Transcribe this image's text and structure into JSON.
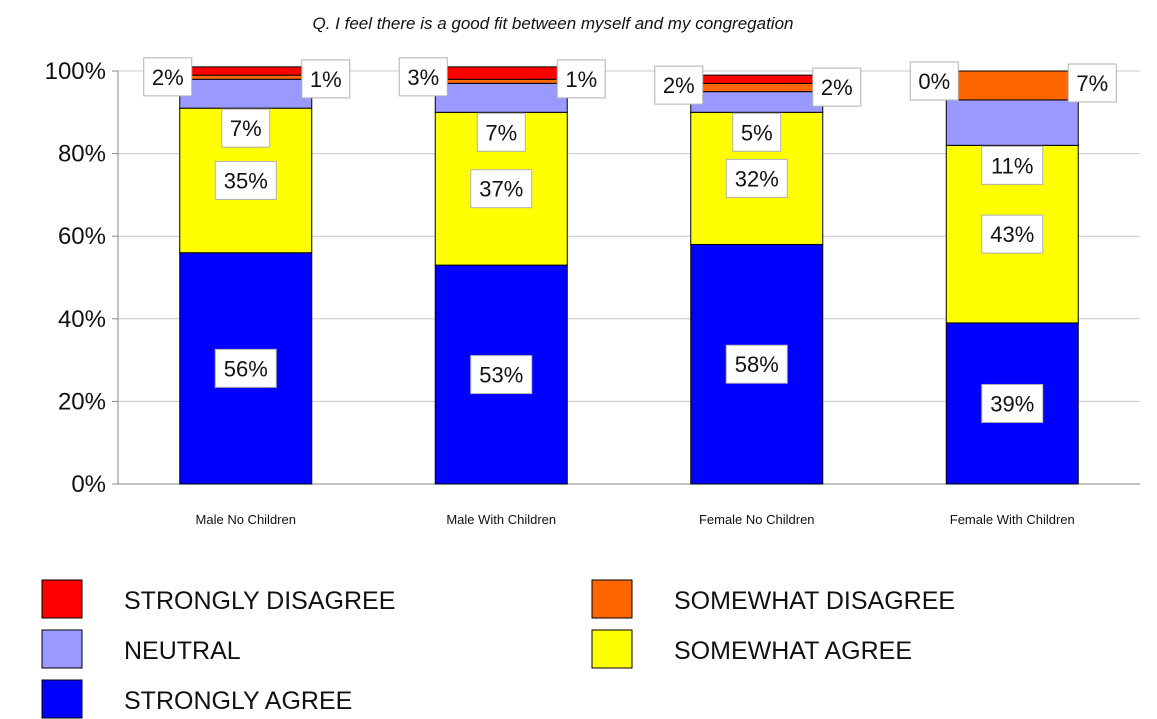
{
  "chart_data": {
    "type": "bar",
    "stacked": true,
    "title": "Q. I feel there is a good fit between myself and my congregation",
    "xlabel": "",
    "ylabel": "",
    "ylim": [
      0,
      100
    ],
    "yticks": [
      "0%",
      "20%",
      "40%",
      "60%",
      "80%",
      "100%"
    ],
    "grid": true,
    "legend_position": "bottom",
    "categories": [
      "Male No Children",
      "Male With Children",
      "Female No Children",
      "Female With Children"
    ],
    "series": [
      {
        "name": "STRONGLY AGREE",
        "color": "#0000ff",
        "values": [
          56,
          53,
          58,
          39
        ]
      },
      {
        "name": "SOMEWHAT AGREE",
        "color": "#ffff00",
        "values": [
          35,
          37,
          32,
          43
        ]
      },
      {
        "name": "NEUTRAL",
        "color": "#9999ff",
        "values": [
          7,
          7,
          5,
          11
        ]
      },
      {
        "name": "SOMEWHAT DISAGREE",
        "color": "#ff6600",
        "values": [
          1,
          1,
          2,
          7
        ]
      },
      {
        "name": "STRONGLY DISAGREE",
        "color": "#ff0000",
        "values": [
          2,
          3,
          2,
          0
        ]
      }
    ],
    "data_labels": [
      [
        "56%",
        "35%",
        "7%",
        "1%",
        "2%"
      ],
      [
        "53%",
        "37%",
        "7%",
        "1%",
        "3%"
      ],
      [
        "58%",
        "32%",
        "5%",
        "2%",
        "2%"
      ],
      [
        "39%",
        "43%",
        "11%",
        "7%",
        "0%"
      ]
    ],
    "legend_order": [
      "STRONGLY DISAGREE",
      "SOMEWHAT DISAGREE",
      "NEUTRAL",
      "SOMEWHAT AGREE",
      "STRONGLY AGREE"
    ]
  }
}
